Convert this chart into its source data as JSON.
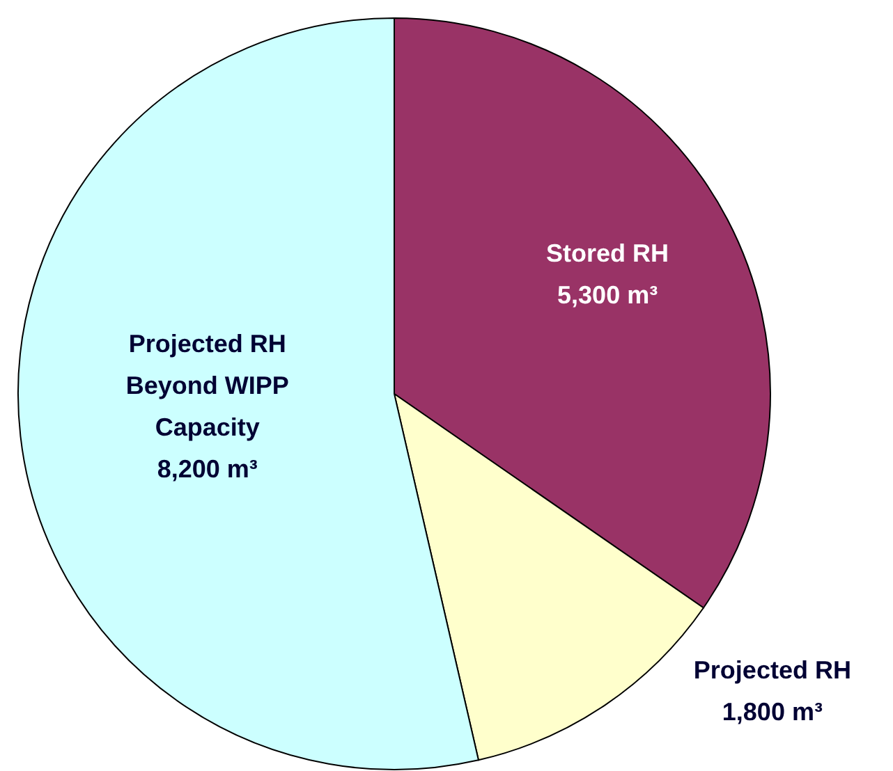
{
  "chart_data": {
    "type": "pie",
    "categories": [
      "Stored RH",
      "Projected RH",
      "Projected RH Beyond WIPP Capacity"
    ],
    "values": [
      5300,
      1800,
      8200
    ],
    "colors": [
      "#993366",
      "#ffffcc",
      "#ccffff"
    ],
    "value_labels": [
      "5,300 m³",
      "1,800 m³",
      "8,200 m³"
    ]
  }
}
